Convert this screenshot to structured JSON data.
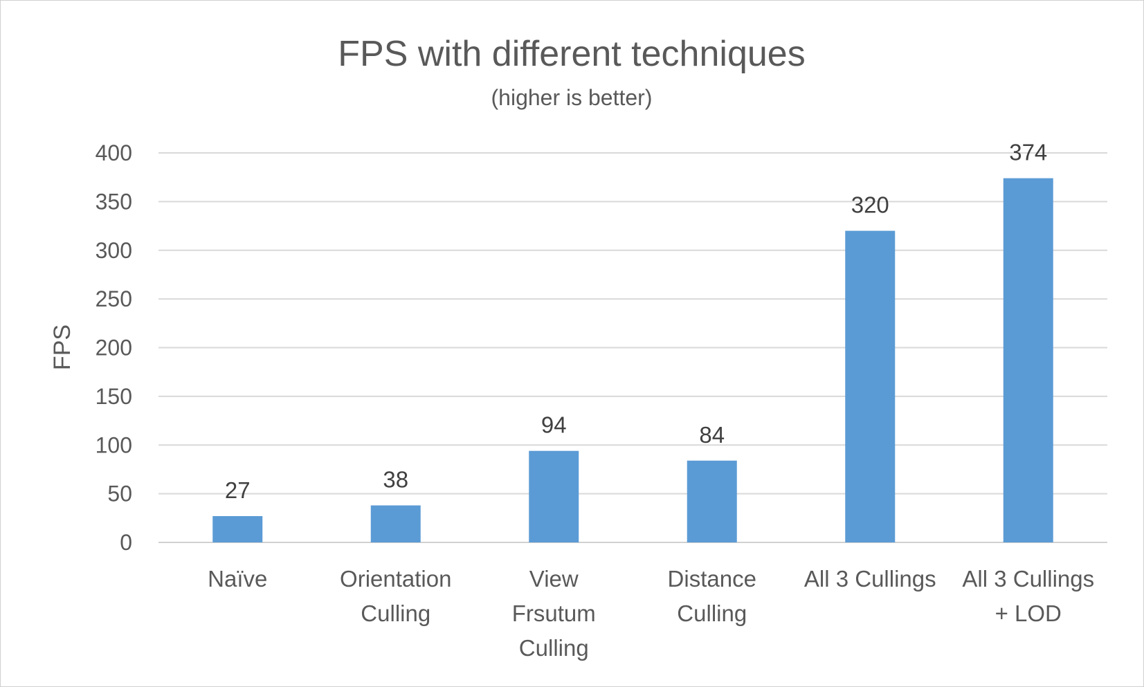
{
  "chart_data": {
    "type": "bar",
    "title": "FPS with different techniques",
    "subtitle": "(higher is better)",
    "ylabel": "FPS",
    "xlabel": "",
    "categories": [
      [
        "Naïve"
      ],
      [
        "Orientation",
        "Culling"
      ],
      [
        "View",
        "Frsutum",
        "Culling"
      ],
      [
        "Distance",
        "Culling"
      ],
      [
        "All 3 Cullings"
      ],
      [
        "All 3 Cullings",
        "+ LOD"
      ]
    ],
    "values": [
      27,
      38,
      94,
      84,
      320,
      374
    ],
    "data_labels": [
      "27",
      "38",
      "94",
      "84",
      "320",
      "374"
    ],
    "ylim": [
      0,
      400
    ],
    "yticks": [
      0,
      50,
      100,
      150,
      200,
      250,
      300,
      350,
      400
    ],
    "grid": true,
    "legend": "none",
    "bar_color": "#5b9bd5"
  }
}
